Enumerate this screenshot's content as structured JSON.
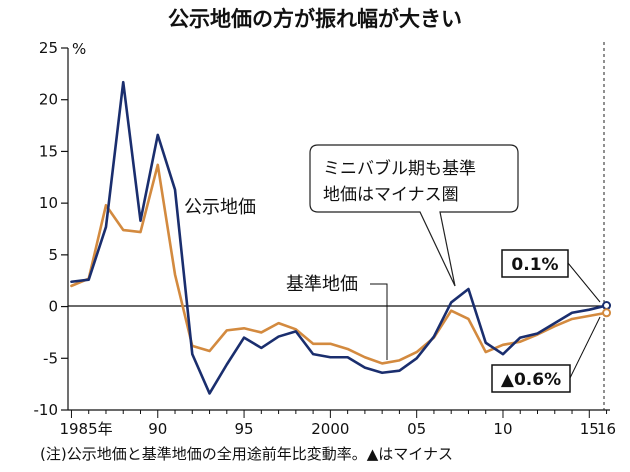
{
  "chart_data": {
    "type": "line",
    "title": "公示地価の方が振れ幅が大きい",
    "ylabel": "%",
    "ylim": [
      -10,
      25
    ],
    "xlim": [
      1984.8,
      2016.2
    ],
    "yticks": [
      -10,
      -5,
      0,
      5,
      10,
      15,
      20,
      25
    ],
    "ytick_labels": [
      "-10",
      "-5",
      "0",
      "5",
      "10",
      "15",
      "20",
      "25"
    ],
    "xticks": [
      {
        "year": 1985,
        "label": "1985年"
      },
      {
        "year": 1990,
        "label": "90"
      },
      {
        "year": 1995,
        "label": "95"
      },
      {
        "year": 2000,
        "label": "2000"
      },
      {
        "year": 2005,
        "label": "05"
      },
      {
        "year": 2010,
        "label": "10"
      },
      {
        "year": 2015,
        "label": "15"
      },
      {
        "year": 2016,
        "label": "16"
      }
    ],
    "x": [
      1985,
      1986,
      1987,
      1988,
      1989,
      1990,
      1991,
      1992,
      1993,
      1994,
      1995,
      1996,
      1997,
      1998,
      1999,
      2000,
      2001,
      2002,
      2003,
      2004,
      2005,
      2006,
      2007,
      2008,
      2009,
      2010,
      2011,
      2012,
      2013,
      2014,
      2015,
      2016
    ],
    "series": [
      {
        "name": "公示地価",
        "color": "#1a2e6e",
        "values": [
          2.4,
          2.6,
          7.7,
          21.7,
          8.3,
          16.6,
          11.3,
          -4.6,
          -8.4,
          -5.6,
          -3.0,
          -4.0,
          -2.9,
          -2.4,
          -4.6,
          -4.9,
          -4.9,
          -5.9,
          -6.4,
          -6.2,
          -5.0,
          -2.9,
          0.4,
          1.7,
          -3.5,
          -4.6,
          -3.0,
          -2.6,
          -1.6,
          -0.6,
          -0.3,
          0.1
        ]
      },
      {
        "name": "基準地価",
        "color": "#d38a3f",
        "values": [
          2.0,
          2.7,
          9.8,
          7.4,
          7.2,
          13.7,
          3.1,
          -3.8,
          -4.3,
          -2.3,
          -2.1,
          -2.5,
          -1.6,
          -2.2,
          -3.6,
          -3.6,
          -4.1,
          -4.9,
          -5.5,
          -5.2,
          -4.4,
          -3.0,
          -0.4,
          -1.2,
          -4.4,
          -3.7,
          -3.4,
          -2.7,
          -1.9,
          -1.2,
          -0.9,
          -0.6
        ]
      }
    ],
    "annotations": {
      "series_label_kouji": "公示地価",
      "series_label_kijun": "基準地価",
      "bubble_line1": "ミニバブル期も基準",
      "bubble_line2": "地価はマイナス圏",
      "value_box_top": "0.1%",
      "value_box_bottom": "▲0.6%"
    }
  },
  "note": "(注)公示地価と基準地価の全用途前年比変動率。▲はマイナス"
}
